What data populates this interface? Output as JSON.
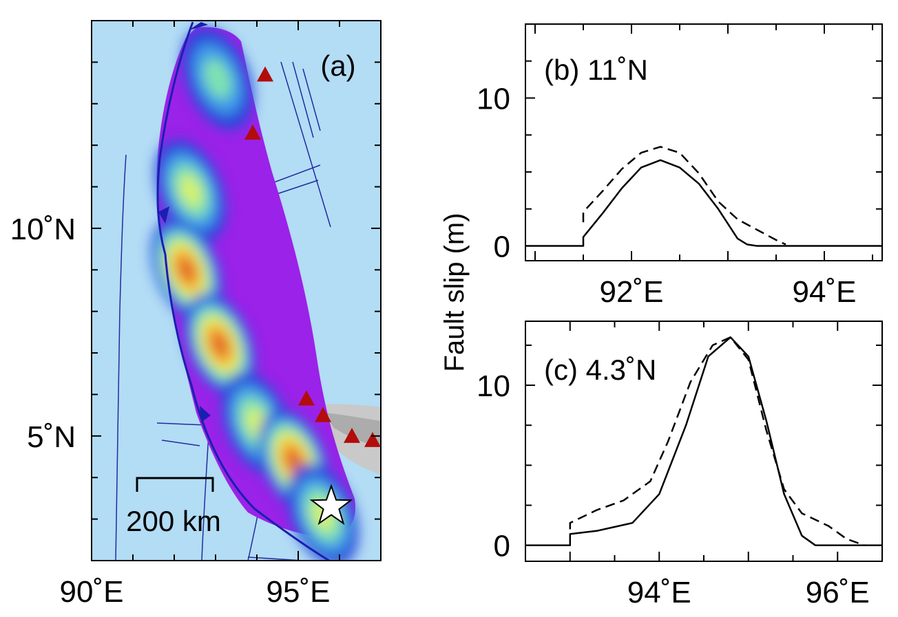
{
  "chart_data": [
    {
      "panel": "a",
      "type": "heatmap",
      "label": "(a)",
      "xlim": [
        90,
        97
      ],
      "ylim": [
        2,
        15
      ],
      "x_ticks": [
        90,
        95
      ],
      "x_tick_labels": [
        "90˚E",
        "95˚E"
      ],
      "y_ticks": [
        5,
        10
      ],
      "y_tick_labels": [
        "5˚N",
        "10˚N"
      ],
      "scale_bar": {
        "length_km": 200,
        "label": "200 km"
      },
      "epicenter_marker": "star-icon",
      "epicenter": [
        95.8,
        3.3
      ],
      "stations": [
        [
          94.2,
          13.7
        ],
        [
          93.9,
          12.3
        ],
        [
          95.2,
          5.9
        ],
        [
          95.6,
          5.5
        ],
        [
          96.3,
          5.0
        ],
        [
          96.8,
          4.9
        ]
      ],
      "slip_patches": [
        {
          "lon": 93.05,
          "lat": 13.6,
          "level": 2
        },
        {
          "lon": 92.4,
          "lat": 10.9,
          "level": 3
        },
        {
          "lon": 92.3,
          "lat": 9.0,
          "level": 6
        },
        {
          "lon": 93.1,
          "lat": 7.2,
          "level": 6
        },
        {
          "lon": 94.0,
          "lat": 5.3,
          "level": 3
        },
        {
          "lon": 94.9,
          "lat": 4.4,
          "level": 6
        },
        {
          "lon": 95.6,
          "lat": 3.1,
          "level": 3
        }
      ],
      "colors": {
        "background": "#b3dcf5",
        "rupture": "#9b22e8",
        "trench": "#1a1fb0",
        "station": "#b30c0c"
      }
    },
    {
      "panel": "b",
      "type": "line",
      "label": "(b) 11˚N",
      "xlim": [
        90.9,
        94.6
      ],
      "ylim": [
        -1,
        15
      ],
      "x_ticks": [
        92,
        94
      ],
      "x_tick_labels": [
        "92˚E",
        "94˚E"
      ],
      "y_ticks": [
        0,
        10
      ],
      "y_tick_labels": [
        "0",
        "10"
      ],
      "series": [
        {
          "style": "solid",
          "x": [
            90.9,
            91.5,
            91.5,
            91.7,
            91.9,
            92.1,
            92.3,
            92.5,
            92.7,
            92.9,
            93.1,
            93.2,
            93.3,
            94.6
          ],
          "y": [
            0,
            0,
            0.6,
            2.2,
            3.9,
            5.3,
            5.8,
            5.3,
            4.2,
            2.5,
            0.5,
            0.1,
            0,
            0
          ]
        },
        {
          "style": "dashed",
          "x": [
            91.5,
            91.5,
            91.7,
            91.9,
            92.1,
            92.3,
            92.5,
            92.7,
            92.9,
            93.1,
            93.3,
            93.5,
            93.6
          ],
          "y": [
            1.6,
            2.3,
            3.7,
            5.2,
            6.3,
            6.7,
            6.3,
            4.9,
            3.0,
            1.8,
            1.1,
            0.4,
            0.1
          ]
        }
      ]
    },
    {
      "panel": "c",
      "type": "line",
      "label": "(c) 4.3˚N",
      "xlim": [
        92.5,
        96.5
      ],
      "ylim": [
        -1,
        14
      ],
      "x_ticks": [
        94,
        96
      ],
      "x_tick_labels": [
        "94˚E",
        "96˚E"
      ],
      "y_ticks": [
        0,
        10
      ],
      "y_tick_labels": [
        "0",
        "10"
      ],
      "ylabel": "Fault slip (m)",
      "series": [
        {
          "style": "solid",
          "x": [
            92.5,
            93.0,
            93.0,
            93.3,
            93.7,
            94.0,
            94.3,
            94.55,
            94.8,
            95.0,
            95.2,
            95.4,
            95.6,
            95.75,
            96.5
          ],
          "y": [
            0,
            0,
            0.7,
            0.9,
            1.4,
            3.2,
            7.5,
            11.8,
            13.0,
            11.8,
            7.8,
            3.2,
            0.6,
            0,
            0
          ]
        },
        {
          "style": "dashed",
          "x": [
            93.0,
            93.0,
            93.3,
            93.6,
            93.9,
            94.1,
            94.35,
            94.6,
            94.8,
            95.0,
            95.2,
            95.4,
            95.6,
            95.9,
            96.1,
            96.3
          ],
          "y": [
            1.0,
            1.4,
            2.2,
            2.8,
            4.0,
            6.5,
            10.2,
            12.5,
            13.0,
            11.6,
            7.2,
            3.5,
            2.0,
            1.2,
            0.4,
            0
          ]
        }
      ]
    }
  ]
}
